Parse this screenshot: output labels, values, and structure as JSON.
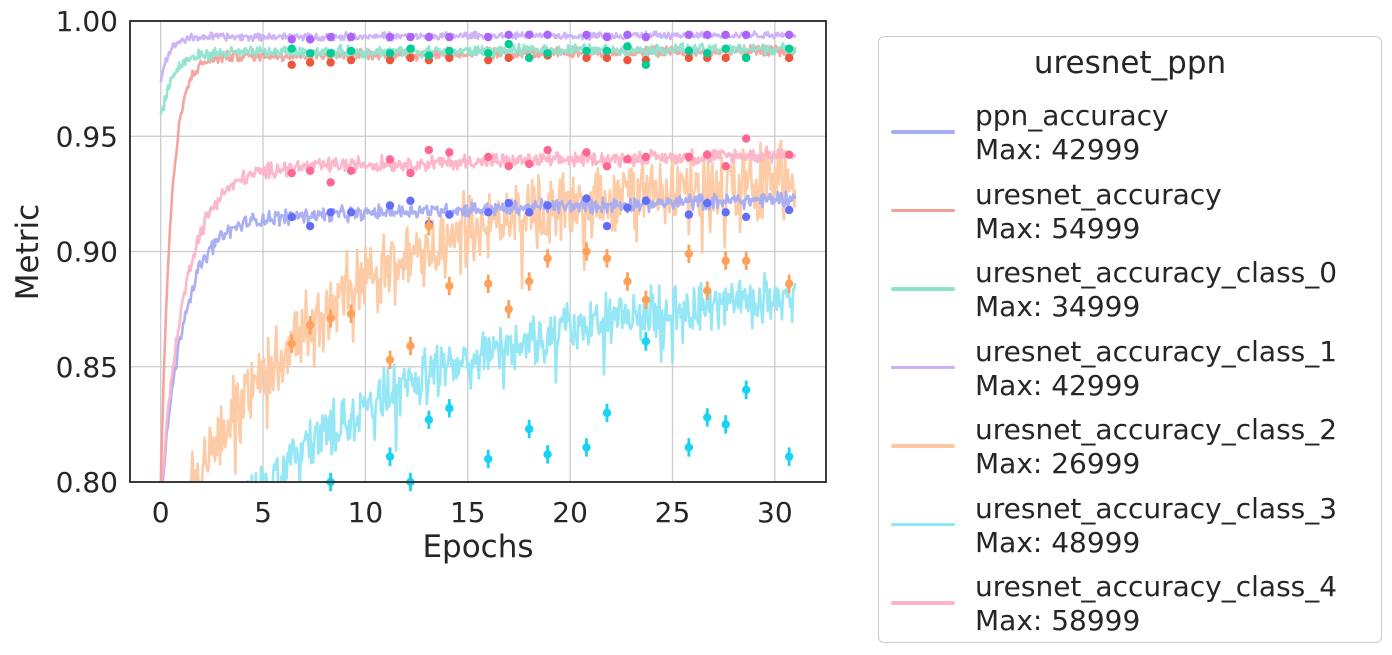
{
  "chart_data": {
    "type": "line",
    "title": "",
    "xlabel": "Epochs",
    "ylabel": "Metric",
    "xlim": [
      -1.5,
      32.5
    ],
    "ylim": [
      0.8,
      1.0
    ],
    "xticks": [
      0,
      5,
      10,
      15,
      20,
      25,
      30
    ],
    "yticks": [
      0.8,
      0.85,
      0.9,
      0.95,
      1.0
    ],
    "ytick_labels": [
      "0.80",
      "0.85",
      "0.90",
      "0.95",
      "1.00"
    ],
    "grid": true,
    "legend": {
      "title": "uresnet_ppn",
      "placement": "outside-right"
    },
    "series": [
      {
        "name": "ppn_accuracy",
        "max_label": "Max: 42999",
        "color": "#a5acf2",
        "curve": {
          "asymptote": 0.923,
          "start": 0.8,
          "tau": 1.1,
          "late_slope": 0.0003,
          "noise": 0.002
        },
        "points": [
          [
            6.4,
            0.915
          ],
          [
            7.3,
            0.911
          ],
          [
            8.3,
            0.917
          ],
          [
            9.3,
            0.917
          ],
          [
            11.2,
            0.92
          ],
          [
            12.2,
            0.922
          ],
          [
            13.1,
            0.912
          ],
          [
            14.1,
            0.916
          ],
          [
            16.0,
            0.917
          ],
          [
            17.0,
            0.921
          ],
          [
            18.0,
            0.917
          ],
          [
            18.9,
            0.92
          ],
          [
            20.8,
            0.923
          ],
          [
            21.8,
            0.911
          ],
          [
            22.8,
            0.919
          ],
          [
            23.7,
            0.922
          ],
          [
            25.8,
            0.916
          ],
          [
            26.7,
            0.921
          ],
          [
            27.6,
            0.917
          ],
          [
            28.6,
            0.915
          ],
          [
            30.7,
            0.918
          ]
        ],
        "point_color": "#636efa"
      },
      {
        "name": "uresnet_accuracy",
        "max_label": "Max: 54999",
        "color": "#f4a09a",
        "curve": {
          "asymptote": 0.987,
          "start": 0.8,
          "tau": 0.5,
          "late_slope": 8e-05,
          "noise": 0.0015
        },
        "points": [
          [
            6.4,
            0.981
          ],
          [
            7.3,
            0.982
          ],
          [
            8.3,
            0.982
          ],
          [
            9.3,
            0.983
          ],
          [
            11.2,
            0.983
          ],
          [
            12.2,
            0.984
          ],
          [
            13.1,
            0.983
          ],
          [
            14.1,
            0.984
          ],
          [
            16.0,
            0.983
          ],
          [
            17.0,
            0.984
          ],
          [
            18.0,
            0.984
          ],
          [
            18.9,
            0.985
          ],
          [
            20.8,
            0.984
          ],
          [
            21.8,
            0.984
          ],
          [
            22.8,
            0.983
          ],
          [
            23.7,
            0.983
          ],
          [
            25.8,
            0.984
          ],
          [
            26.7,
            0.984
          ],
          [
            27.6,
            0.984
          ],
          [
            28.6,
            0.984
          ],
          [
            30.7,
            0.984
          ]
        ],
        "point_color": "#ef553b"
      },
      {
        "name": "uresnet_accuracy_class_0",
        "max_label": "Max: 34999",
        "color": "#8ee3cd",
        "curve": {
          "asymptote": 0.988,
          "start": 0.96,
          "tau": 0.6,
          "late_slope": 6e-05,
          "noise": 0.0015
        },
        "points": [
          [
            6.4,
            0.988
          ],
          [
            7.3,
            0.986
          ],
          [
            8.3,
            0.986
          ],
          [
            9.3,
            0.987
          ],
          [
            11.2,
            0.986
          ],
          [
            12.2,
            0.988
          ],
          [
            13.1,
            0.985
          ],
          [
            14.1,
            0.987
          ],
          [
            16.0,
            0.986
          ],
          [
            17.0,
            0.99
          ],
          [
            18.0,
            0.984
          ],
          [
            18.9,
            0.986
          ],
          [
            20.8,
            0.987
          ],
          [
            21.8,
            0.987
          ],
          [
            22.8,
            0.989
          ],
          [
            23.7,
            0.981
          ],
          [
            25.8,
            0.987
          ],
          [
            26.7,
            0.986
          ],
          [
            27.6,
            0.988
          ],
          [
            28.6,
            0.984
          ],
          [
            30.7,
            0.988
          ]
        ],
        "point_color": "#00cc96"
      },
      {
        "name": "uresnet_accuracy_class_1",
        "max_label": "Max: 42999",
        "color": "#cbb0f5",
        "curve": {
          "asymptote": 0.994,
          "start": 0.975,
          "tau": 0.4,
          "late_slope": 3e-05,
          "noise": 0.001
        },
        "points": [
          [
            6.4,
            0.992
          ],
          [
            7.3,
            0.992
          ],
          [
            8.3,
            0.993
          ],
          [
            9.3,
            0.993
          ],
          [
            11.2,
            0.993
          ],
          [
            12.2,
            0.993
          ],
          [
            13.1,
            0.993
          ],
          [
            14.1,
            0.993
          ],
          [
            16.0,
            0.993
          ],
          [
            17.0,
            0.994
          ],
          [
            18.0,
            0.994
          ],
          [
            18.9,
            0.994
          ],
          [
            20.8,
            0.994
          ],
          [
            21.8,
            0.993
          ],
          [
            22.8,
            0.994
          ],
          [
            23.7,
            0.993
          ],
          [
            25.8,
            0.994
          ],
          [
            26.7,
            0.994
          ],
          [
            27.6,
            0.994
          ],
          [
            28.6,
            0.994
          ],
          [
            30.7,
            0.994
          ]
        ],
        "point_color": "#ab63fa"
      },
      {
        "name": "uresnet_accuracy_class_2",
        "max_label": "Max: 26999",
        "color": "#fdc8a0",
        "curve": {
          "asymptote": 0.935,
          "start": 0.78,
          "tau": 7.0,
          "late_slope": 0.0005,
          "noise": 0.01
        },
        "points": [
          [
            6.4,
            0.86
          ],
          [
            7.3,
            0.868
          ],
          [
            8.3,
            0.871
          ],
          [
            9.3,
            0.873
          ],
          [
            11.2,
            0.853
          ],
          [
            12.2,
            0.859
          ],
          [
            13.1,
            0.911
          ],
          [
            14.1,
            0.885
          ],
          [
            16.0,
            0.886
          ],
          [
            17.0,
            0.875
          ],
          [
            18.0,
            0.887
          ],
          [
            18.9,
            0.897
          ],
          [
            20.8,
            0.9
          ],
          [
            21.8,
            0.897
          ],
          [
            22.8,
            0.887
          ],
          [
            23.7,
            0.879
          ],
          [
            25.8,
            0.899
          ],
          [
            26.7,
            0.883
          ],
          [
            27.6,
            0.896
          ],
          [
            28.6,
            0.896
          ],
          [
            30.7,
            0.886
          ]
        ],
        "point_color": "#ffa15a"
      },
      {
        "name": "uresnet_accuracy_class_3",
        "max_label": "Max: 48999",
        "color": "#8fe6f6",
        "curve": {
          "asymptote": 0.885,
          "start": 0.75,
          "tau": 9.0,
          "late_slope": 0.0004,
          "noise": 0.007
        },
        "points": [
          [
            8.3,
            0.8
          ],
          [
            11.2,
            0.811
          ],
          [
            12.2,
            0.8
          ],
          [
            13.1,
            0.827
          ],
          [
            14.1,
            0.832
          ],
          [
            16.0,
            0.81
          ],
          [
            18.0,
            0.823
          ],
          [
            18.9,
            0.812
          ],
          [
            20.8,
            0.815
          ],
          [
            21.8,
            0.83
          ],
          [
            23.7,
            0.861
          ],
          [
            25.8,
            0.815
          ],
          [
            26.7,
            0.828
          ],
          [
            27.6,
            0.825
          ],
          [
            28.6,
            0.84
          ],
          [
            30.7,
            0.811
          ]
        ],
        "point_color": "#19d3f3"
      },
      {
        "name": "uresnet_accuracy_class_4",
        "max_label": "Max: 58999",
        "color": "#fdb3c8",
        "curve": {
          "asymptote": 0.942,
          "start": 0.8,
          "tau": 1.2,
          "late_slope": 0.0002,
          "noise": 0.002
        },
        "points": [
          [
            6.4,
            0.934
          ],
          [
            7.3,
            0.935
          ],
          [
            8.3,
            0.93
          ],
          [
            9.3,
            0.935
          ],
          [
            11.2,
            0.94
          ],
          [
            12.2,
            0.934
          ],
          [
            13.1,
            0.944
          ],
          [
            14.1,
            0.943
          ],
          [
            16.0,
            0.941
          ],
          [
            17.0,
            0.937
          ],
          [
            18.0,
            0.938
          ],
          [
            18.9,
            0.944
          ],
          [
            20.8,
            0.943
          ],
          [
            21.8,
            0.937
          ],
          [
            22.8,
            0.94
          ],
          [
            23.7,
            0.941
          ],
          [
            25.8,
            0.941
          ],
          [
            26.7,
            0.942
          ],
          [
            27.6,
            0.937
          ],
          [
            28.6,
            0.949
          ],
          [
            30.7,
            0.942
          ]
        ],
        "point_color": "#ff6692"
      }
    ],
    "x_end": 31.0
  }
}
